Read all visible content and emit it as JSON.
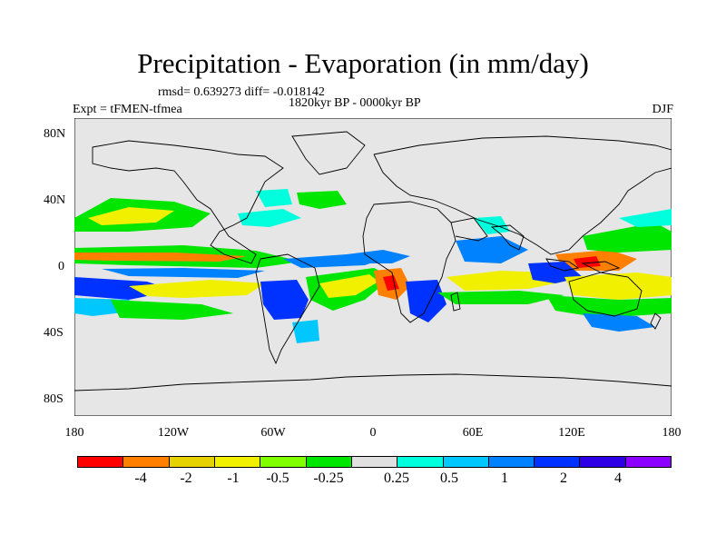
{
  "map": {
    "title": "Precipitation - Evaporation (in mm/day)",
    "stats": "rmsd= 0.639273 diff= -0.018142",
    "period": "1820kyr BP - 0000kyr BP",
    "experiment": "Expt = tFMEN-tfmea",
    "season": "DJF",
    "lat_labels": [
      "80N",
      "40N",
      "0",
      "40S",
      "80S"
    ],
    "lon_labels": [
      "180",
      "120W",
      "60W",
      "0",
      "60E",
      "120E",
      "180"
    ],
    "colorbar": {
      "colors": [
        "#ff0000",
        "#ff8000",
        "#e6d200",
        "#f0f000",
        "#7fff00",
        "#00e600",
        "#e0e0e0",
        "#00ffdc",
        "#00c8ff",
        "#0082ff",
        "#0032ff",
        "#2d00e6",
        "#8c00ff"
      ],
      "labels": [
        "-4",
        "-2",
        "-1",
        "-0.5",
        "-0.25",
        "0.25",
        "0.5",
        "1",
        "2",
        "4"
      ]
    },
    "colors": {
      "background": "#e6e6e6",
      "land_line": "#000000"
    }
  }
}
